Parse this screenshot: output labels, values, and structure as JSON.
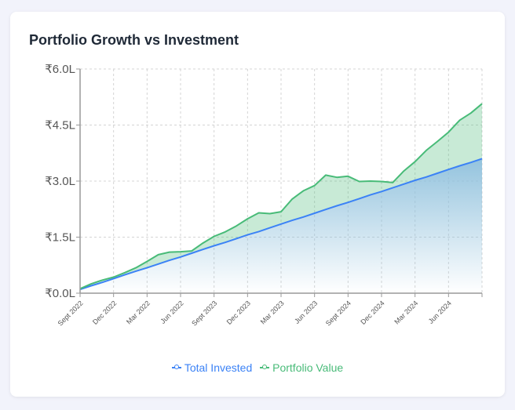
{
  "card": {
    "title": "Portfolio Growth vs Investment"
  },
  "chart_data": {
    "type": "area",
    "title": "Portfolio Growth vs Investment",
    "xlabel": "",
    "ylabel": "",
    "ylim": [
      0,
      6.0
    ],
    "y_ticks": [
      "₹0.0L",
      "₹1.5L",
      "₹3.0L",
      "₹4.5L",
      "₹6.0L"
    ],
    "y_tick_values": [
      0,
      1.5,
      3.0,
      4.5,
      6.0
    ],
    "x_tick_labels": [
      "Sept 2022",
      "Dec 2022",
      "Mar 2022",
      "Jun 2022",
      "Sept 2023",
      "Dec 2023",
      "Mar 2023",
      "Jun 2023",
      "Sept 2024",
      "Dec 2024",
      "Mar 2024",
      "Jun 2024"
    ],
    "months_between_ticks": 3,
    "grid": true,
    "legend_placement": "bottom-center",
    "series": [
      {
        "name": "Total Invested",
        "color": "#3b82f6",
        "values": [
          0.1,
          0.2,
          0.29,
          0.39,
          0.49,
          0.59,
          0.68,
          0.78,
          0.88,
          0.97,
          1.07,
          1.17,
          1.27,
          1.36,
          1.46,
          1.56,
          1.65,
          1.75,
          1.85,
          1.95,
          2.04,
          2.14,
          2.24,
          2.34,
          2.43,
          2.53,
          2.63,
          2.72,
          2.82,
          2.92,
          3.02,
          3.11,
          3.21,
          3.31,
          3.41,
          3.5,
          3.6
        ]
      },
      {
        "name": "Portfolio Value",
        "color": "#48bb78",
        "values": [
          0.12,
          0.25,
          0.35,
          0.43,
          0.55,
          0.68,
          0.85,
          1.03,
          1.1,
          1.11,
          1.13,
          1.34,
          1.52,
          1.64,
          1.8,
          1.99,
          2.15,
          2.13,
          2.18,
          2.52,
          2.74,
          2.88,
          3.16,
          3.1,
          3.13,
          2.99,
          3.0,
          2.99,
          2.96,
          3.27,
          3.52,
          3.82,
          4.06,
          4.31,
          4.63,
          4.82,
          5.07
        ]
      }
    ]
  }
}
